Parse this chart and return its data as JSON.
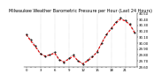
{
  "title": "Milwaukee Weather Barometric Pressure per Hour (Last 24 Hours)",
  "background_color": "#ffffff",
  "line_color": "#ff0000",
  "dot_color": "#000000",
  "grid_color": "#aaaaaa",
  "ylim": [
    29.6,
    30.5
  ],
  "hours": [
    0,
    1,
    2,
    3,
    4,
    5,
    6,
    7,
    8,
    9,
    10,
    11,
    12,
    13,
    14,
    15,
    16,
    17,
    18,
    19,
    20,
    21,
    22,
    23
  ],
  "pressure": [
    30.15,
    30.05,
    29.95,
    29.82,
    29.78,
    29.8,
    29.85,
    29.72,
    29.68,
    29.75,
    29.8,
    29.7,
    29.65,
    29.72,
    29.78,
    29.85,
    30.0,
    30.15,
    30.25,
    30.35,
    30.42,
    30.38,
    30.32,
    30.18
  ],
  "pressure_smooth": [
    30.14,
    30.03,
    29.93,
    29.82,
    29.78,
    29.8,
    29.83,
    29.72,
    29.68,
    29.73,
    29.78,
    29.7,
    29.65,
    29.7,
    29.76,
    29.85,
    30.0,
    30.14,
    30.24,
    30.34,
    30.4,
    30.37,
    30.3,
    30.17
  ],
  "yticks": [
    29.6,
    29.7,
    29.8,
    29.9,
    30.0,
    30.1,
    30.2,
    30.3,
    30.4,
    30.5
  ],
  "ytick_labels": [
    "29.60",
    "29.70",
    "29.80",
    "29.90",
    "30.00",
    "30.10",
    "30.20",
    "30.30",
    "30.40",
    "30.50"
  ],
  "vgrid_positions": [
    3,
    6,
    9,
    12,
    15,
    18,
    21
  ],
  "title_fontsize": 3.5,
  "tick_fontsize": 2.8,
  "line_width": 0.8,
  "dot_size": 1.0
}
